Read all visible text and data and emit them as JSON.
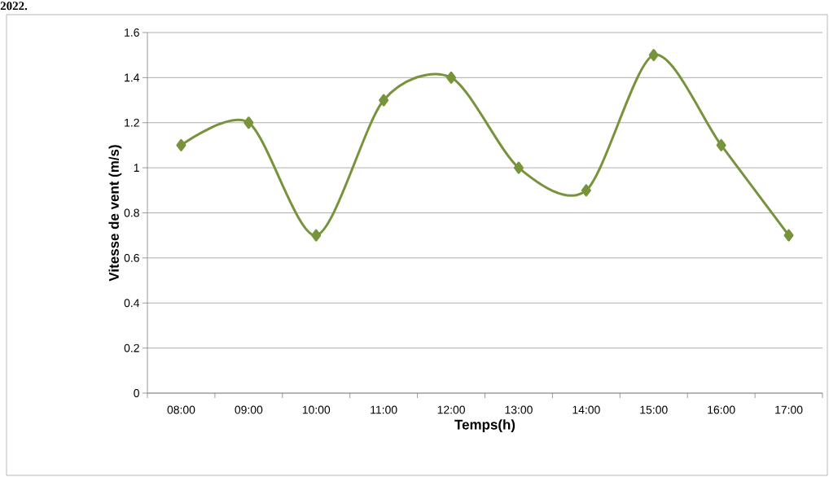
{
  "chart_data": {
    "type": "line",
    "xlabel": "Temps(h)",
    "ylabel": "Vitesse de vent (m/s)",
    "annotations": [
      "2022."
    ],
    "categories": [
      "08:00",
      "09:00",
      "10:00",
      "11:00",
      "12:00",
      "13:00",
      "14:00",
      "15:00",
      "16:00",
      "17:00"
    ],
    "values": [
      1.1,
      1.2,
      0.7,
      1.3,
      1.4,
      1.0,
      0.9,
      1.5,
      1.1,
      0.7
    ],
    "color": "#77933c",
    "marker": "diamond",
    "line_style": "solid",
    "ylim": [
      0,
      1.6
    ],
    "yticks": [
      0,
      0.2,
      0.4,
      0.6,
      0.8,
      1,
      1.2,
      1.4,
      1.6
    ],
    "grid": "y"
  }
}
